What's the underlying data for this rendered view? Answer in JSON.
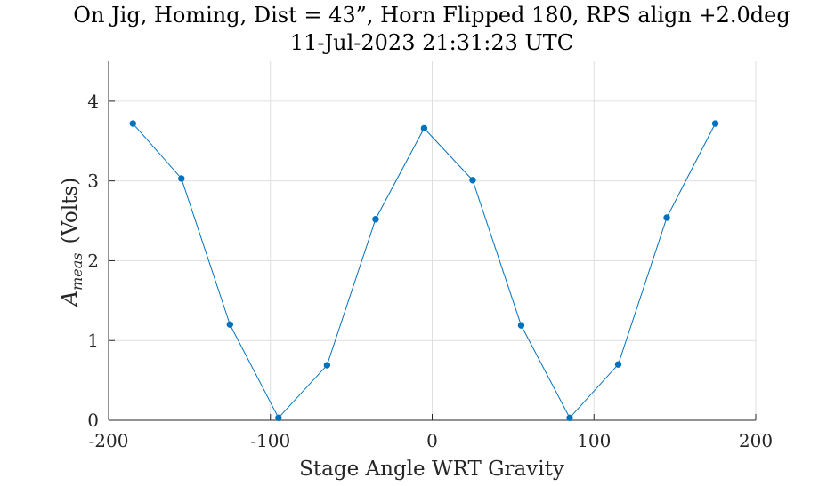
{
  "chart_data": {
    "type": "line",
    "title": "On Jig, Homing, Dist = 43”, Horn Flipped 180, RPS align +2.0deg",
    "subtitle": "11-Jul-2023 21:31:23 UTC",
    "xlabel": "Stage Angle WRT Gravity",
    "ylabel": {
      "symbol": "A",
      "subscript": "meas",
      "unit": "(Volts)"
    },
    "xlim": [
      -200,
      200
    ],
    "ylim": [
      0,
      4.5
    ],
    "xticks": [
      -200,
      -100,
      0,
      100,
      200
    ],
    "xtick_labels": [
      "-200",
      "-100",
      "0",
      "100",
      "200"
    ],
    "yticks": [
      0,
      1,
      2,
      3,
      4
    ],
    "ytick_labels": [
      "0",
      "1",
      "2",
      "3",
      "4"
    ],
    "grid": true,
    "series": [
      {
        "color": "#0072bd",
        "marker": "dot",
        "x": [
          -185,
          -155,
          -125,
          -95,
          -65,
          -35,
          -5,
          25,
          55,
          85,
          115,
          145,
          175
        ],
        "y": [
          3.72,
          3.03,
          1.2,
          0.03,
          0.69,
          2.52,
          3.66,
          3.01,
          1.19,
          0.03,
          0.7,
          2.54,
          3.72
        ]
      }
    ]
  }
}
